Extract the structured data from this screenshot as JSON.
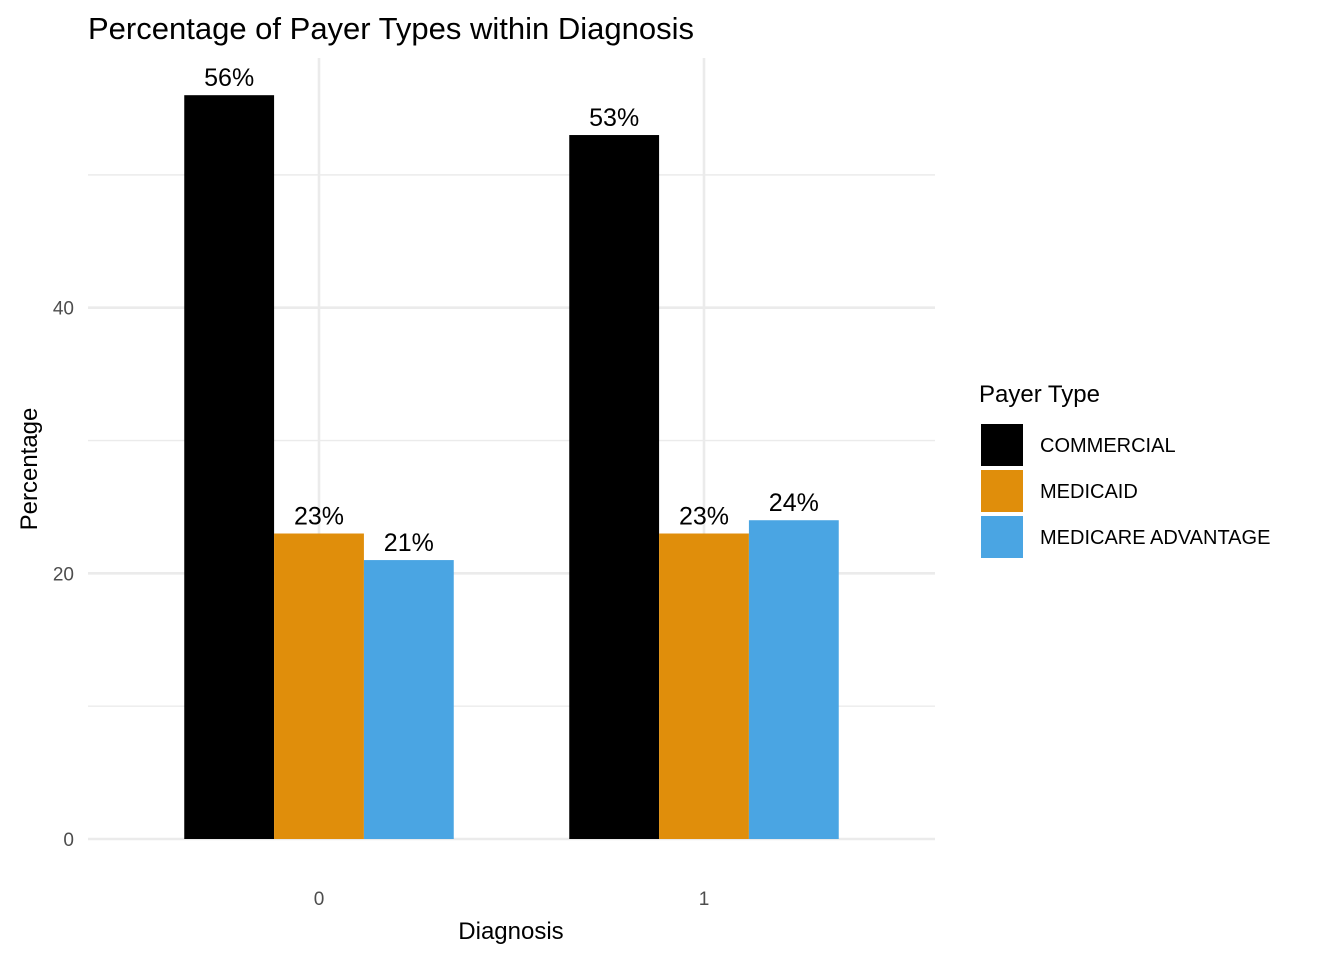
{
  "chart_data": {
    "type": "bar",
    "title": "Percentage of Payer Types within Diagnosis",
    "xlabel": "Diagnosis",
    "ylabel": "Percentage",
    "categories": [
      "0",
      "1"
    ],
    "series": [
      {
        "name": "COMMERCIAL",
        "color": "#000000",
        "values": [
          56,
          53
        ],
        "labels": [
          "56%",
          "53%"
        ]
      },
      {
        "name": "MEDICAID",
        "color": "#E08E0B",
        "values": [
          23,
          23
        ],
        "labels": [
          "23%",
          "23%"
        ]
      },
      {
        "name": "MEDICARE ADVANTAGE",
        "color": "#4AA5E3",
        "values": [
          21,
          24
        ],
        "labels": [
          "21%",
          "24%"
        ]
      }
    ],
    "yticks": [
      0,
      20,
      40
    ],
    "ylim": [
      0,
      58.8
    ],
    "grid": true,
    "legend": {
      "title": "Payer Type",
      "position": "right"
    }
  }
}
